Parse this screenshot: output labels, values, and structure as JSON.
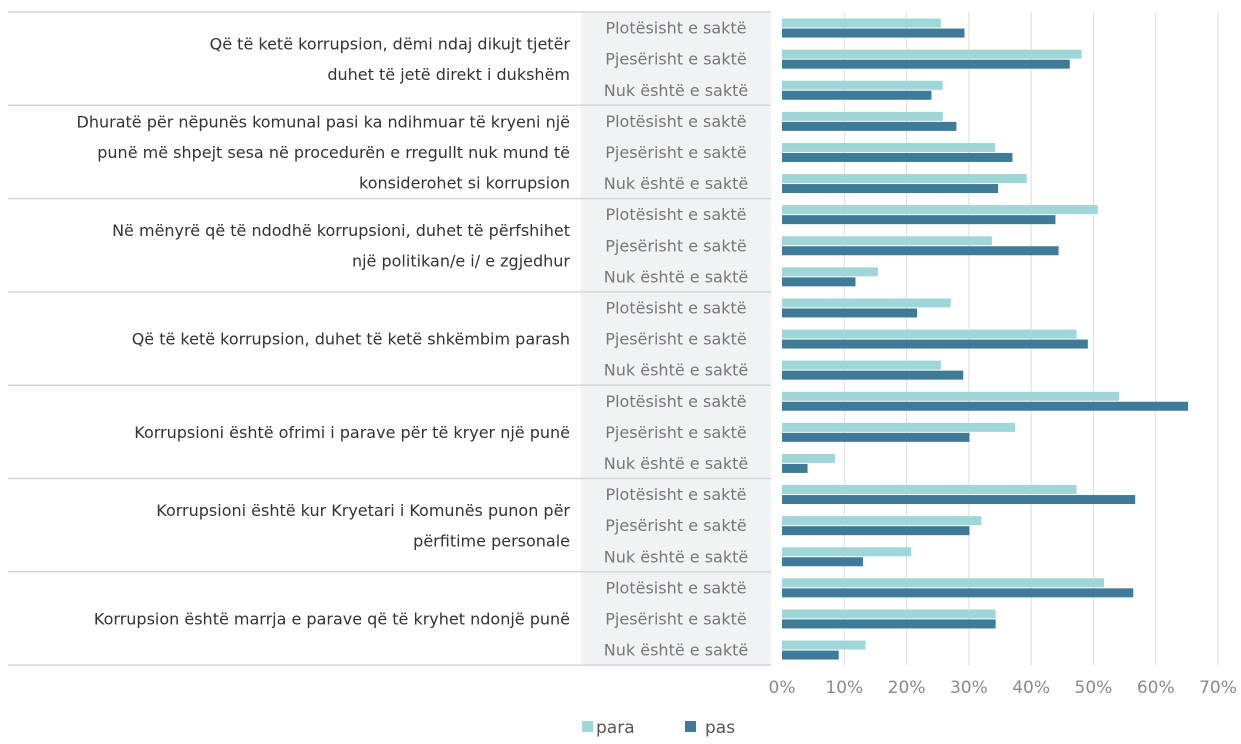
{
  "chart_data": {
    "type": "bar",
    "orientation": "horizontal",
    "xlim": [
      0,
      70
    ],
    "x_unit": "%",
    "x_ticks": [
      "0%",
      "10%",
      "20%",
      "30%",
      "40%",
      "50%",
      "60%",
      "70%"
    ],
    "grid": true,
    "legend_position": "bottom",
    "colors": {
      "para": "#9fd7d8",
      "pas": "#3f7a98",
      "category_band": "#f1f2f4",
      "grid": "#dddddd",
      "separator": "#d6d6d6"
    },
    "series": [
      {
        "name": "para"
      },
      {
        "name": "pas"
      }
    ],
    "groups": [
      {
        "question": [
          "Që të ketë korrupsion, dëmi ndaj dikujt tjetër",
          "duhet të jetë direkt i dukshëm"
        ],
        "rows": [
          {
            "category": "Plotësisht e saktë",
            "para": 25.5,
            "pas": 29.3
          },
          {
            "category": "Pjesërisht e saktë",
            "para": 48.1,
            "pas": 46.2
          },
          {
            "category": "Nuk është e saktë",
            "para": 25.8,
            "pas": 24.0
          }
        ]
      },
      {
        "question": [
          "Dhuratë për nëpunës komunal pasi ka ndihmuar të kryeni një",
          "punë më shpejt sesa në procedurën e rregullt nuk mund të",
          "konsiderohet si korrupsion"
        ],
        "rows": [
          {
            "category": "Plotësisht e saktë",
            "para": 25.8,
            "pas": 28.0
          },
          {
            "category": "Pjesërisht e saktë",
            "para": 34.2,
            "pas": 37.0
          },
          {
            "category": "Nuk është e saktë",
            "para": 39.3,
            "pas": 34.7
          }
        ]
      },
      {
        "question": [
          "Në mënyrë që të ndodhë korrupsioni, duhet të përfshihet",
          "një politikan/e i/ e zgjedhur"
        ],
        "rows": [
          {
            "category": "Plotësisht e saktë",
            "para": 50.7,
            "pas": 43.9
          },
          {
            "category": "Pjesërisht e saktë",
            "para": 33.7,
            "pas": 44.4
          },
          {
            "category": "Nuk është e saktë",
            "para": 15.4,
            "pas": 11.8
          }
        ]
      },
      {
        "question": [
          "Që të ketë korrupsion, duhet të ketë shkëmbim parash"
        ],
        "rows": [
          {
            "category": "Plotësisht e saktë",
            "para": 27.1,
            "pas": 21.7
          },
          {
            "category": "Pjesërisht e saktë",
            "para": 47.3,
            "pas": 49.1
          },
          {
            "category": "Nuk është e saktë",
            "para": 25.5,
            "pas": 29.1
          }
        ]
      },
      {
        "question": [
          "Korrupsioni është ofrimi i parave për të kryer një punë"
        ],
        "rows": [
          {
            "category": "Plotësisht e saktë",
            "para": 54.1,
            "pas": 65.2
          },
          {
            "category": "Pjesërisht e saktë",
            "para": 37.4,
            "pas": 30.1
          },
          {
            "category": "Nuk është e saktë",
            "para": 8.5,
            "pas": 4.1
          }
        ]
      },
      {
        "question": [
          "Korrupsioni është kur Kryetari i Komunës punon për",
          "përfitime personale"
        ],
        "rows": [
          {
            "category": "Plotësisht e saktë",
            "para": 47.3,
            "pas": 56.7
          },
          {
            "category": "Pjesërisht e saktë",
            "para": 32.0,
            "pas": 30.1
          },
          {
            "category": "Nuk është e saktë",
            "para": 20.7,
            "pas": 13.0
          }
        ]
      },
      {
        "question": [
          "Korrupsion është marrja e parave që të kryhet ndonjë punë"
        ],
        "rows": [
          {
            "category": "Plotësisht e saktë",
            "para": 51.7,
            "pas": 56.4
          },
          {
            "category": "Pjesërisht e saktë",
            "para": 34.3,
            "pas": 34.3
          },
          {
            "category": "Nuk është e saktë",
            "para": 13.4,
            "pas": 9.1
          }
        ]
      }
    ]
  }
}
